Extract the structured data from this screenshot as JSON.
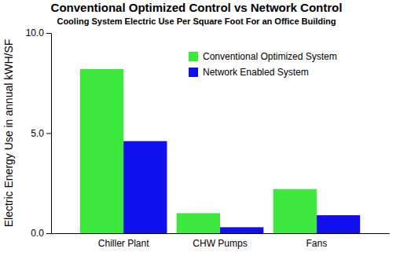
{
  "chart_data": {
    "type": "bar",
    "title": "Conventional Optimized Control vs Network Control",
    "subtitle": "Cooling System Electric Use Per Square Foot  For an Office Building",
    "y_label": "Electric Energy Use in annual kWH/SF",
    "categories": [
      "Chiller Plant",
      "CHW Pumps",
      "Fans"
    ],
    "series": [
      {
        "name": "Conventional Optimized System",
        "color": "#3de83d",
        "values": [
          8.2,
          1.0,
          2.2
        ]
      },
      {
        "name": "Network Enabled System",
        "color": "#1010ee",
        "values": [
          4.6,
          0.3,
          0.9
        ]
      }
    ],
    "ylim": [
      0,
      10
    ],
    "yticks": [
      {
        "value": 0,
        "label": "0.0"
      },
      {
        "value": 5,
        "label": "5.0"
      },
      {
        "value": 10,
        "label": "10.0"
      }
    ],
    "grid": false,
    "legend": "upper right"
  }
}
